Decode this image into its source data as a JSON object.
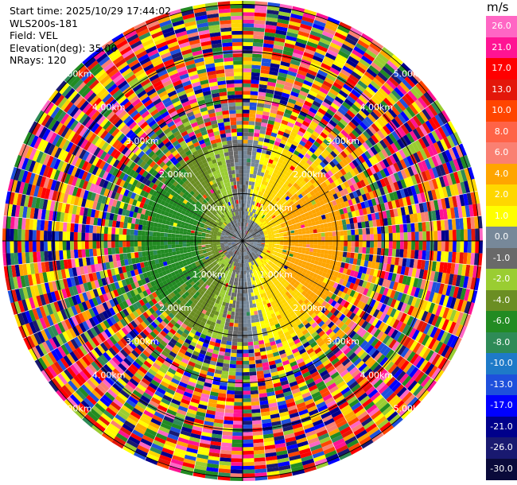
{
  "header": {
    "start_time": "Start time: 2025/10/29 17:44:02",
    "instrument": "WLS200s-181",
    "field": "Field: VEL",
    "elevation": "Elevation(deg): 35.00",
    "nrays": "NRays: 120"
  },
  "ppi": {
    "rays": 120,
    "range_rings": [
      {
        "label": "1.00km"
      },
      {
        "label": "2.00km"
      },
      {
        "label": "3.00km"
      },
      {
        "label": "4.00km"
      },
      {
        "label": "5.00km"
      }
    ],
    "ring_labels_per_ring": 4
  },
  "colorbar": {
    "unit": "m/s",
    "ticks": [
      "26.0",
      "21.0",
      "17.0",
      "13.0",
      "10.0",
      "8.0",
      "6.0",
      "4.0",
      "2.0",
      "1.0",
      "0.0",
      "-1.0",
      "-2.0",
      "-4.0",
      "-6.0",
      "-8.0",
      "-10.0",
      "-13.0",
      "-17.0",
      "-21.0",
      "-26.0",
      "-30.0"
    ],
    "colors": [
      "#ff66c4",
      "#ff1493",
      "#ff0000",
      "#e3170a",
      "#ff4500",
      "#ff6347",
      "#fa8072",
      "#ffa500",
      "#ffd700",
      "#ffff00",
      "#778899",
      "#696969",
      "#9acd32",
      "#6b8e23",
      "#228b22",
      "#2e8b57",
      "#1e7ac8",
      "#1e50dc",
      "#0000ff",
      "#00008b",
      "#191970",
      "#0a0a3a"
    ]
  }
}
